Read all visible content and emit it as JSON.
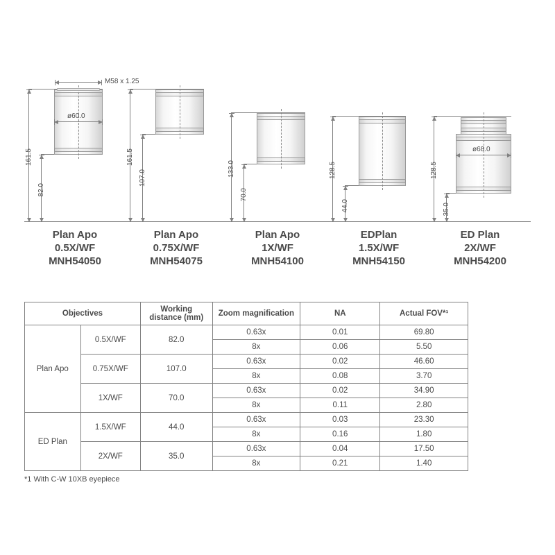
{
  "colors": {
    "stroke": "#808080",
    "text": "#4a4a4a",
    "lens_light": "#ffffff",
    "lens_dark": "#d0d0d0",
    "bg": "#ffffff"
  },
  "diagram": {
    "thread_label": "M58 x 1.25",
    "scale_note": "1 mm ≈ 1.18 px (approx)",
    "objectives": [
      {
        "id": "obj1",
        "name_lines": [
          "Plan Apo",
          "0.5X/WF",
          "MNH54050"
        ],
        "total_height_mm": 161.5,
        "working_distance_mm": 82.0,
        "lens_height_mm": 79.5,
        "lens_width_mm": 60.0,
        "diameter_label": "ø60.0",
        "show_thread": true,
        "show_diameter": true
      },
      {
        "id": "obj2",
        "name_lines": [
          "Plan Apo",
          "0.75X/WF",
          "MNH54075"
        ],
        "total_height_mm": 161.5,
        "working_distance_mm": 107.0,
        "lens_height_mm": 54.5,
        "lens_width_mm": 60.0,
        "show_thread": false,
        "show_diameter": false
      },
      {
        "id": "obj3",
        "name_lines": [
          "Plan Apo",
          "1X/WF",
          "MNH54100"
        ],
        "total_height_mm": 133.0,
        "working_distance_mm": 70.0,
        "lens_height_mm": 63.0,
        "lens_width_mm": 60.0,
        "show_thread": false,
        "show_diameter": false
      },
      {
        "id": "obj4",
        "name_lines": [
          "EDPlan",
          "1.5X/WF",
          "MNH54150"
        ],
        "total_height_mm": 128.5,
        "working_distance_mm": 44.0,
        "lens_height_mm": 84.5,
        "lens_width_mm": 58.0,
        "show_thread": false,
        "show_diameter": false
      },
      {
        "id": "obj5",
        "name_lines": [
          "ED Plan",
          "2X/WF",
          "MNH54200"
        ],
        "total_height_mm": 128.5,
        "working_distance_mm": 35.0,
        "lens_height_mm": 93.5,
        "lens_width_mm": 68.0,
        "diameter_label": "ø68.0",
        "show_thread": false,
        "show_diameter": true,
        "stepped": true
      }
    ]
  },
  "table": {
    "headers": {
      "objectives": "Objectives",
      "wd": "Working distance (mm)",
      "zoom": "Zoom magnification",
      "na": "NA",
      "fov": "Actual FOV*¹"
    },
    "groups": [
      {
        "family": "Plan Apo",
        "rows": [
          {
            "model": "0.5X/WF",
            "wd": "82.0",
            "specs": [
              {
                "zoom": "0.63x",
                "na": "0.01",
                "fov": "69.80"
              },
              {
                "zoom": "8x",
                "na": "0.06",
                "fov": "5.50"
              }
            ]
          },
          {
            "model": "0.75X/WF",
            "wd": "107.0",
            "specs": [
              {
                "zoom": "0.63x",
                "na": "0.02",
                "fov": "46.60"
              },
              {
                "zoom": "8x",
                "na": "0.08",
                "fov": "3.70"
              }
            ]
          },
          {
            "model": "1X/WF",
            "wd": "70.0",
            "specs": [
              {
                "zoom": "0.63x",
                "na": "0.02",
                "fov": "34.90"
              },
              {
                "zoom": "8x",
                "na": "0.11",
                "fov": "2.80"
              }
            ]
          }
        ]
      },
      {
        "family": "ED Plan",
        "rows": [
          {
            "model": "1.5X/WF",
            "wd": "44.0",
            "specs": [
              {
                "zoom": "0.63x",
                "na": "0.03",
                "fov": "23.30"
              },
              {
                "zoom": "8x",
                "na": "0.16",
                "fov": "1.80"
              }
            ]
          },
          {
            "model": "2X/WF",
            "wd": "35.0",
            "specs": [
              {
                "zoom": "0.63x",
                "na": "0.04",
                "fov": "17.50"
              },
              {
                "zoom": "8x",
                "na": "0.21",
                "fov": "1.40"
              }
            ]
          }
        ]
      }
    ],
    "footnote": "*1 With C-W 10XB eyepiece"
  }
}
